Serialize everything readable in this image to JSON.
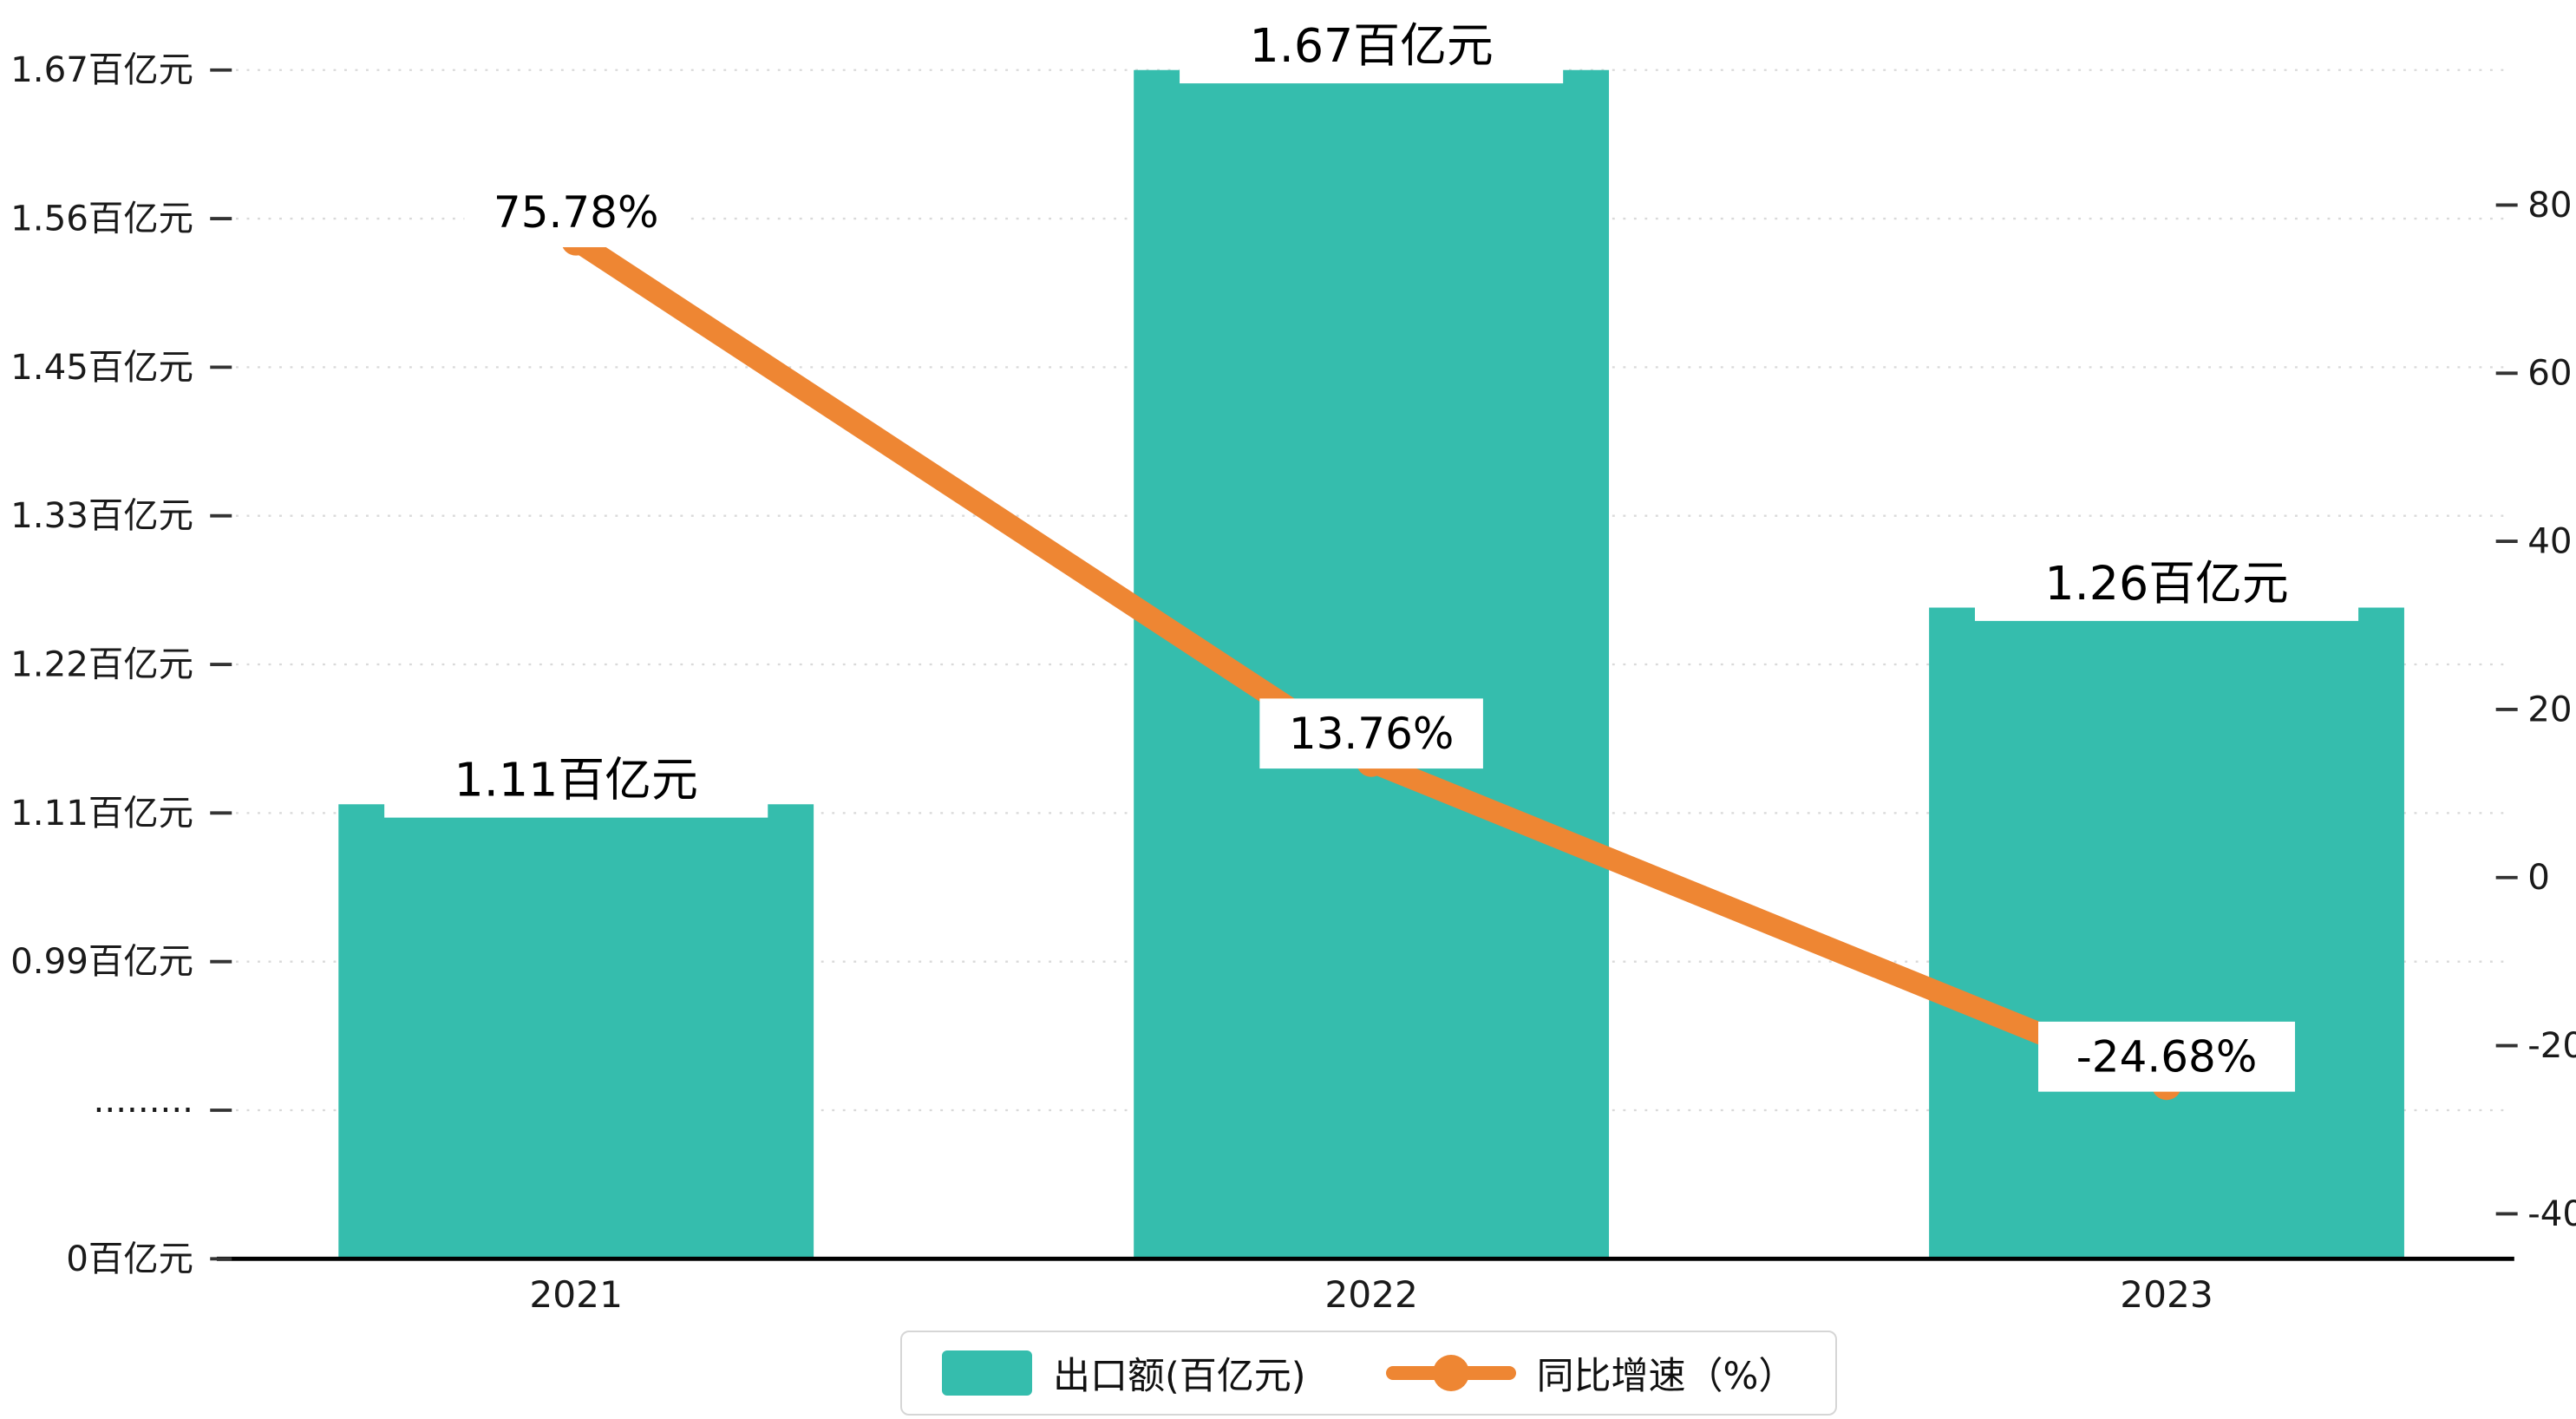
{
  "chart_data": {
    "type": "bar+line",
    "title": "",
    "categories": [
      "2021",
      "2022",
      "2023"
    ],
    "series": [
      {
        "name": "出口额(百亿元)",
        "type": "bar",
        "values": [
          1.11,
          1.67,
          1.26
        ],
        "labels": [
          "1.11百亿元",
          "1.67百亿元",
          "1.26百亿元"
        ],
        "color": "#35BDAD"
      },
      {
        "name": "同比增速（%）",
        "type": "line",
        "values": [
          75.78,
          13.76,
          -24.68
        ],
        "labels": [
          "75.78%",
          "13.76%",
          "-24.68%"
        ],
        "color": "#EE8633"
      }
    ],
    "left_axis": {
      "ticks": [
        "1.67百亿元",
        "1.56百亿元",
        "1.45百亿元",
        "1.33百亿元",
        "1.22百亿元",
        "1.11百亿元",
        "0.99百亿元",
        "·········",
        "0百亿元"
      ],
      "tick_values": [
        1.67,
        1.56,
        1.45,
        1.33,
        1.22,
        1.11,
        0.99,
        null,
        0
      ],
      "broken_axis": true
    },
    "right_axis": {
      "ticks": [
        "80",
        "60",
        "40",
        "20",
        "0",
        "-20",
        "-40"
      ],
      "max": 80,
      "min": -40
    },
    "legend": [
      {
        "label": "出口额(百亿元)",
        "color": "#35BDAD",
        "marker": "bar"
      },
      {
        "label": "同比增速（%）",
        "color": "#EE8633",
        "marker": "line"
      }
    ],
    "grid": true,
    "background": "#FFFFFF",
    "text_color": "#1a1a1a",
    "grid_color": "#d9d9d9"
  }
}
